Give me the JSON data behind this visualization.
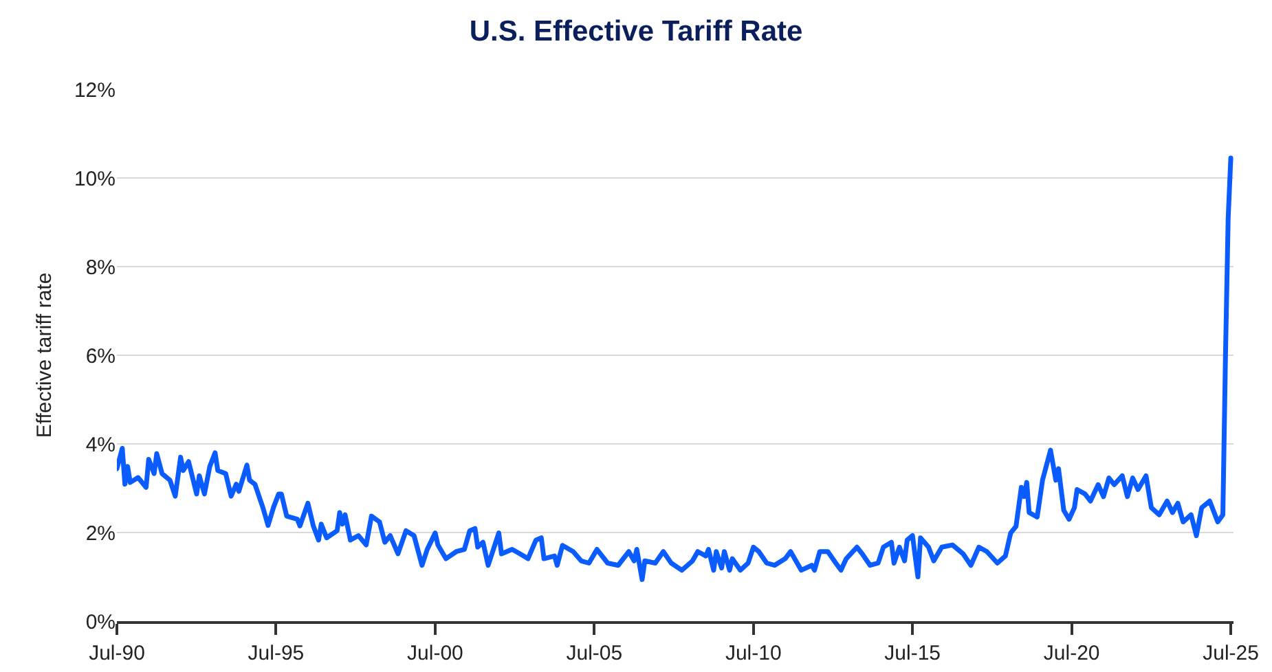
{
  "chart_data": {
    "type": "line",
    "title": "U.S. Effective Tariff Rate",
    "ylabel": "Effective tariff rate",
    "xlim": [
      "1990-07",
      "2025-08"
    ],
    "xticks": [
      {
        "value": "1990-07",
        "label": "Jul-90"
      },
      {
        "value": "1995-07",
        "label": "Jul-95"
      },
      {
        "value": "2000-07",
        "label": "Jul-00"
      },
      {
        "value": "2005-07",
        "label": "Jul-05"
      },
      {
        "value": "2010-07",
        "label": "Jul-10"
      },
      {
        "value": "2015-07",
        "label": "Jul-15"
      },
      {
        "value": "2020-07",
        "label": "Jul-20"
      },
      {
        "value": "2025-07",
        "label": "Jul-25"
      }
    ],
    "ylim": [
      0,
      12
    ],
    "yticks": [
      {
        "value": 0,
        "label": "0%"
      },
      {
        "value": 2,
        "label": "2%"
      },
      {
        "value": 4,
        "label": "4%"
      },
      {
        "value": 6,
        "label": "6%"
      },
      {
        "value": 8,
        "label": "8%"
      },
      {
        "value": 10,
        "label": "10%"
      },
      {
        "value": 12,
        "label": "12%"
      }
    ],
    "grid": "y",
    "marker": "none",
    "line_style": "solid",
    "series": [
      {
        "color": "#0a5cff",
        "x": [
          "1990-07",
          "1990-09",
          "1990-10",
          "1990-11",
          "1990-12",
          "1991-03",
          "1991-06",
          "1991-07",
          "1991-09",
          "1991-10",
          "1991-12",
          "1992-03",
          "1992-05",
          "1992-07",
          "1992-08",
          "1992-10",
          "1993-01",
          "1993-02",
          "1993-04",
          "1993-06",
          "1993-08",
          "1993-09",
          "1993-12",
          "1994-02",
          "1994-04",
          "1994-05",
          "1994-08",
          "1994-09",
          "1994-11",
          "1995-02",
          "1995-04",
          "1995-06",
          "1995-08",
          "1995-09",
          "1995-11",
          "1996-03",
          "1996-04",
          "1996-07",
          "1996-09",
          "1996-11",
          "1996-12",
          "1997-02",
          "1997-06",
          "1997-07",
          "1997-08",
          "1997-09",
          "1997-11",
          "1998-02",
          "1998-05",
          "1998-07",
          "1998-10",
          "1998-12",
          "1999-02",
          "1999-05",
          "1999-08",
          "1999-11",
          "2000-02",
          "2000-04",
          "2000-07",
          "2000-08",
          "2000-11",
          "2001-03",
          "2001-06",
          "2001-08",
          "2001-10",
          "2001-11",
          "2002-01",
          "2002-03",
          "2002-07",
          "2002-08",
          "2002-12",
          "2003-03",
          "2003-06",
          "2003-09",
          "2003-11",
          "2003-12",
          "2004-04",
          "2004-05",
          "2004-07",
          "2004-11",
          "2005-02",
          "2005-05",
          "2005-08",
          "2005-12",
          "2006-04",
          "2006-08",
          "2006-10",
          "2006-11",
          "2007-01",
          "2007-02",
          "2007-06",
          "2007-09",
          "2007-12",
          "2008-04",
          "2008-08",
          "2008-10",
          "2009-01",
          "2009-02",
          "2009-04",
          "2009-05",
          "2009-07",
          "2009-08",
          "2009-10",
          "2009-11",
          "2010-02",
          "2010-05",
          "2010-07",
          "2010-09",
          "2010-12",
          "2011-03",
          "2011-07",
          "2011-09",
          "2012-01",
          "2012-05",
          "2012-06",
          "2012-08",
          "2012-11",
          "2013-02",
          "2013-04",
          "2013-06",
          "2013-10",
          "2013-12",
          "2014-03",
          "2014-06",
          "2014-08",
          "2014-11",
          "2014-12",
          "2015-02",
          "2015-04",
          "2015-05",
          "2015-07",
          "2015-09",
          "2015-10",
          "2016-01",
          "2016-03",
          "2016-06",
          "2016-10",
          "2017-02",
          "2017-05",
          "2017-08",
          "2017-11",
          "2018-03",
          "2018-06",
          "2018-08",
          "2018-10",
          "2018-12",
          "2019-01",
          "2019-02",
          "2019-03",
          "2019-06",
          "2019-08",
          "2019-11",
          "2020-01",
          "2020-02",
          "2020-04",
          "2020-06",
          "2020-08",
          "2020-09",
          "2020-12",
          "2021-02",
          "2021-05",
          "2021-07",
          "2021-09",
          "2021-11",
          "2022-02",
          "2022-04",
          "2022-06",
          "2022-08",
          "2022-11",
          "2023-01",
          "2023-04",
          "2023-07",
          "2023-09",
          "2023-11",
          "2024-01",
          "2024-04",
          "2024-06",
          "2024-08",
          "2024-11",
          "2025-02",
          "2025-04",
          "2025-05",
          "2025-06",
          "2025-07"
        ],
        "values": [
          3.44,
          3.9,
          3.09,
          3.49,
          3.13,
          3.24,
          3.02,
          3.65,
          3.33,
          3.78,
          3.33,
          3.18,
          2.82,
          3.7,
          3.4,
          3.6,
          2.87,
          3.28,
          2.87,
          3.49,
          3.8,
          3.4,
          3.33,
          2.82,
          3.09,
          2.93,
          3.52,
          3.18,
          3.09,
          2.56,
          2.16,
          2.56,
          2.87,
          2.87,
          2.37,
          2.3,
          2.15,
          2.66,
          2.15,
          1.83,
          2.19,
          1.88,
          2.04,
          2.45,
          2.19,
          2.4,
          1.83,
          1.93,
          1.72,
          2.37,
          2.24,
          1.78,
          1.93,
          1.52,
          2.04,
          1.93,
          1.26,
          1.62,
          1.99,
          1.72,
          1.41,
          1.57,
          1.62,
          2.04,
          2.09,
          1.67,
          1.78,
          1.26,
          1.99,
          1.52,
          1.62,
          1.52,
          1.41,
          1.83,
          1.88,
          1.41,
          1.47,
          1.26,
          1.71,
          1.57,
          1.36,
          1.31,
          1.62,
          1.31,
          1.26,
          1.57,
          1.36,
          1.62,
          0.94,
          1.36,
          1.31,
          1.57,
          1.31,
          1.15,
          1.36,
          1.57,
          1.47,
          1.62,
          1.15,
          1.57,
          1.2,
          1.57,
          1.15,
          1.41,
          1.15,
          1.31,
          1.67,
          1.57,
          1.31,
          1.26,
          1.41,
          1.57,
          1.15,
          1.26,
          1.15,
          1.57,
          1.57,
          1.31,
          1.15,
          1.41,
          1.67,
          1.52,
          1.26,
          1.31,
          1.67,
          1.78,
          1.31,
          1.67,
          1.36,
          1.83,
          1.93,
          1.0,
          1.88,
          1.67,
          1.36,
          1.67,
          1.72,
          1.52,
          1.26,
          1.67,
          1.57,
          1.31,
          1.47,
          1.99,
          2.14,
          3.02,
          2.81,
          3.13,
          2.45,
          2.35,
          3.18,
          3.86,
          3.18,
          3.44,
          2.5,
          2.3,
          2.56,
          2.97,
          2.87,
          2.71,
          3.08,
          2.81,
          3.23,
          3.08,
          3.28,
          2.81,
          3.23,
          2.97,
          3.28,
          2.56,
          2.4,
          2.71,
          2.45,
          2.66,
          2.24,
          2.4,
          1.93,
          2.56,
          2.71,
          2.24,
          2.4,
          5.98,
          9.1,
          10.45
        ]
      }
    ]
  }
}
